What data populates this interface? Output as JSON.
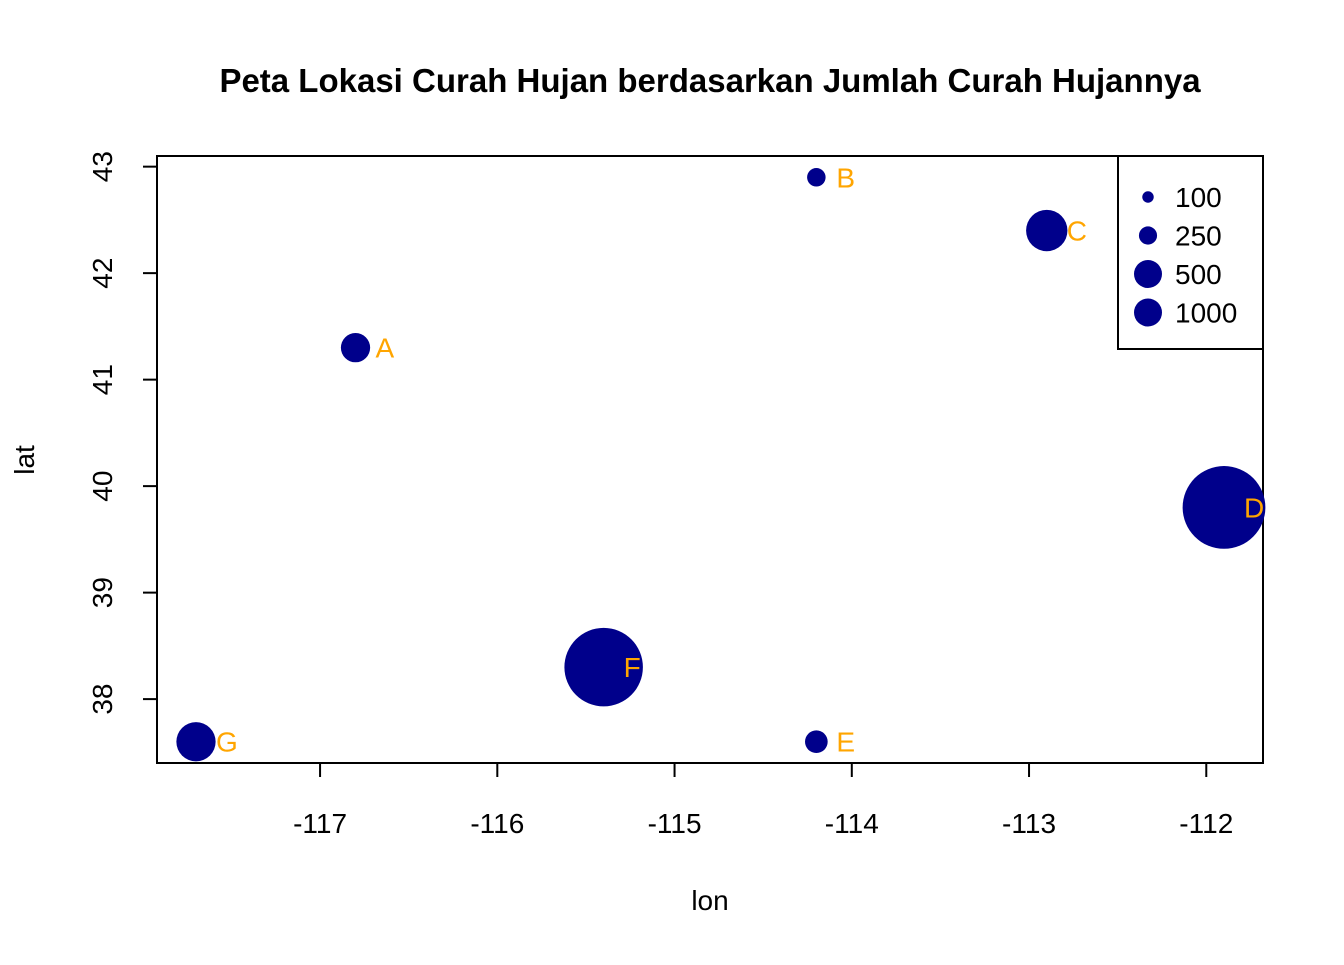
{
  "chart_data": {
    "type": "scatter",
    "title": "Peta Lokasi Curah Hujan berdasarkan Jumlah Curah Hujannya",
    "xlabel": "lon",
    "ylabel": "lat",
    "xlim": [
      -117.92,
      -111.68
    ],
    "ylim": [
      37.4,
      43.1
    ],
    "xticks": [
      -117,
      -116,
      -115,
      -114,
      -113,
      -112
    ],
    "yticks": [
      38,
      39,
      40,
      41,
      42,
      43
    ],
    "xtick_labels": [
      "-117",
      "-116",
      "-115",
      "-114",
      "-113",
      "-112"
    ],
    "ytick_labels": [
      "38",
      "39",
      "40",
      "41",
      "42",
      "43"
    ],
    "grid": false,
    "point_color": "#00008B",
    "label_color": "#FFA500",
    "points": [
      {
        "label": "A",
        "lon": -116.8,
        "lat": 41.3,
        "rain": 250
      },
      {
        "label": "B",
        "lon": -114.2,
        "lat": 42.9,
        "rain": 100
      },
      {
        "label": "C",
        "lon": -112.9,
        "lat": 42.4,
        "rain": 500
      },
      {
        "label": "D",
        "lon": -111.9,
        "lat": 39.8,
        "rain": 2000
      },
      {
        "label": "E",
        "lon": -114.2,
        "lat": 37.6,
        "rain": 150
      },
      {
        "label": "F",
        "lon": -115.4,
        "lat": 38.3,
        "rain": 1800
      },
      {
        "label": "G",
        "lon": -117.7,
        "lat": 37.6,
        "rain": 450
      }
    ],
    "legend": {
      "placement": "top-right",
      "entries": [
        {
          "label": "100",
          "value": 100
        },
        {
          "label": "250",
          "value": 250
        },
        {
          "label": "500",
          "value": 500
        },
        {
          "label": "1000",
          "value": 1000
        }
      ]
    }
  }
}
